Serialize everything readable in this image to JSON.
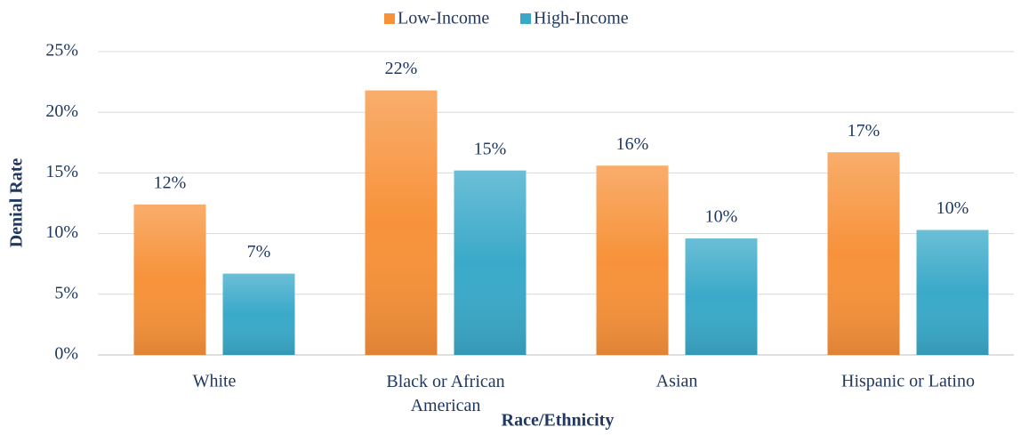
{
  "chart_data": {
    "type": "bar",
    "x_label": "Race/Ethnicity",
    "y_label": "Denial Rate",
    "categories": [
      "White",
      "Black or African American",
      "Asian",
      "Hispanic or Latino"
    ],
    "series": [
      {
        "name": "Low-Income",
        "color": "#f7923a",
        "values": [
          12.4,
          21.8,
          15.6,
          16.7
        ],
        "value_labels": [
          "12%",
          "22%",
          "16%",
          "17%"
        ]
      },
      {
        "name": "High-Income",
        "color": "#3aa9c9",
        "values": [
          6.7,
          15.2,
          9.6,
          10.3
        ],
        "value_labels": [
          "7%",
          "15%",
          "10%",
          "10%"
        ]
      }
    ],
    "ylim": [
      0,
      25
    ],
    "yticks": [
      {
        "value": 0,
        "label": "0%"
      },
      {
        "value": 5,
        "label": "5%"
      },
      {
        "value": 10,
        "label": "10%"
      },
      {
        "value": 15,
        "label": "15%"
      },
      {
        "value": 20,
        "label": "20%"
      },
      {
        "value": 25,
        "label": "25%"
      }
    ],
    "grid": true,
    "legend": "top"
  }
}
